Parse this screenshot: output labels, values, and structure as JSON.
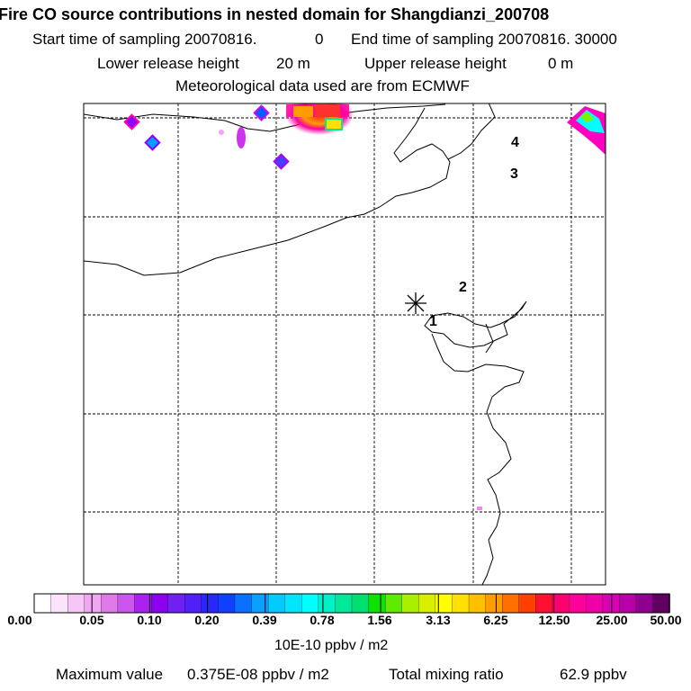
{
  "header": {
    "title": "Fire CO source contributions in nested domain for Shangdianzi_200708",
    "start_label": "Start time of sampling 20070816.",
    "start_value": "0",
    "end_label": "End time of sampling 20070816. 30000",
    "lower_label": "Lower release height",
    "lower_value": "20 m",
    "upper_label": "Upper release height",
    "upper_value": "0 m",
    "met_line": "Meteorological data used are from ECMWF"
  },
  "map": {
    "release_markers": [
      "1",
      "2",
      "3",
      "4"
    ]
  },
  "legend": {
    "labels": [
      "0.00",
      "0.05",
      "0.10",
      "0.20",
      "0.39",
      "0.78",
      "1.56",
      "3.13",
      "6.25",
      "12.50",
      "25.00",
      "50.00"
    ],
    "colors": [
      "#ffffff",
      "#fbe4fb",
      "#f6c6f6",
      "#f0a6f0",
      "#e07ae8",
      "#cc55ee",
      "#aa22ee",
      "#8c00f0",
      "#7020f2",
      "#5020f8",
      "#2828fa",
      "#1040ff",
      "#0a70ff",
      "#0aa0ff",
      "#00ccff",
      "#00e6ff",
      "#00ffff",
      "#00f0c8",
      "#00e89a",
      "#00e070",
      "#10e000",
      "#60ea00",
      "#a8f000",
      "#d8f000",
      "#ffff00",
      "#ffe000",
      "#ffc000",
      "#ff9c00",
      "#ff7000",
      "#ff4000",
      "#ff1030",
      "#ff0070",
      "#ff0098",
      "#f000a8",
      "#d800b0",
      "#b800a8",
      "#900090",
      "#600060"
    ],
    "units": "10E-10 ppbv / m2"
  },
  "footer": {
    "max_label": "Maximum value",
    "max_value": "0.375E-08 ppbv / m2",
    "total_label": "Total mixing ratio",
    "total_value": "62.9 ppbv"
  }
}
